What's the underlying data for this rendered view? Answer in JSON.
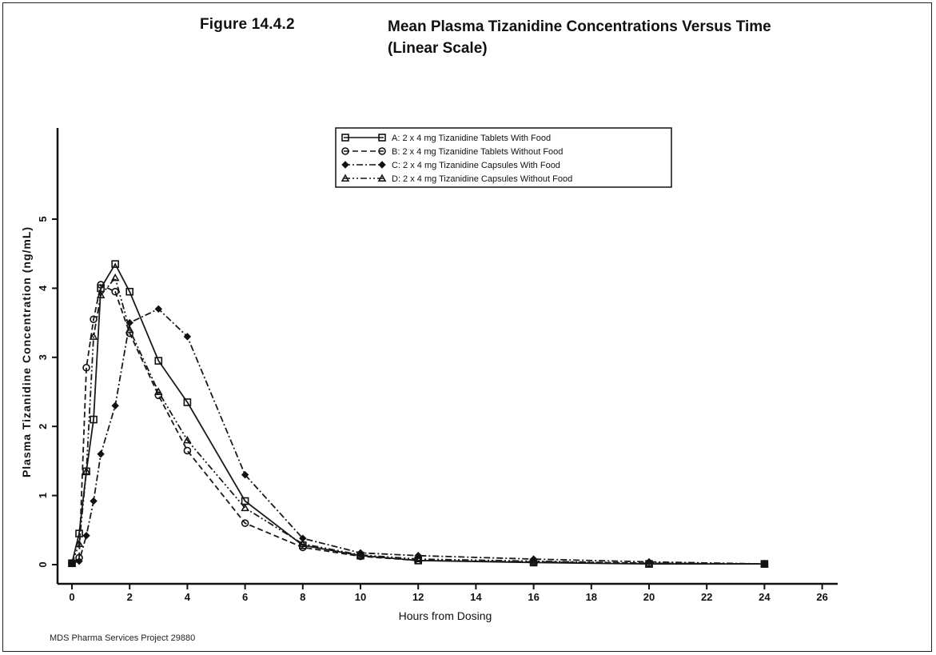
{
  "figure": {
    "number": "Figure 14.4.2",
    "title_line1": "Mean Plasma Tizanidine Concentrations Versus Time",
    "title_line2": "(Linear Scale)"
  },
  "footer": "MDS Pharma Services Project 29880",
  "chart_data": {
    "type": "line",
    "title": "Mean Plasma Tizanidine Concentrations Versus Time (Linear Scale)",
    "xlabel": "Hours from Dosing",
    "ylabel": "Plasma Tizanidine Concentration (ng/mL)",
    "xlim": [
      0,
      26
    ],
    "ylim": [
      0,
      5
    ],
    "xticks": [
      0,
      2,
      4,
      6,
      8,
      10,
      12,
      14,
      16,
      18,
      20,
      22,
      24,
      26
    ],
    "yticks": [
      0,
      1,
      2,
      3,
      4,
      5
    ],
    "x": [
      0,
      0.25,
      0.5,
      0.75,
      1,
      1.5,
      2,
      3,
      4,
      6,
      8,
      10,
      12,
      16,
      20,
      24
    ],
    "legend_position": "top",
    "series": [
      {
        "name": "A: 2 x 4 mg Tizanidine Tablets With Food",
        "marker": "square",
        "dash": "solid",
        "color": "#1a1a1a",
        "values": [
          0.02,
          0.45,
          1.35,
          2.1,
          4.0,
          4.35,
          3.95,
          2.95,
          2.35,
          0.92,
          0.28,
          0.13,
          0.06,
          0.03,
          0.01,
          0.01
        ]
      },
      {
        "name": "B: 2 x 4 mg Tizanidine Tablets Without Food",
        "marker": "circle",
        "dash": "dash",
        "color": "#1a1a1a",
        "values": [
          0.02,
          0.1,
          2.85,
          3.55,
          4.05,
          3.95,
          3.35,
          2.45,
          1.65,
          0.6,
          0.25,
          0.12,
          0.06,
          0.04,
          0.02,
          0.01
        ]
      },
      {
        "name": "C: 2 x 4 mg Tizanidine Capsules With Food",
        "marker": "diamond",
        "dash": "dashdot",
        "color": "#1a1a1a",
        "values": [
          0.02,
          0.05,
          0.42,
          0.92,
          1.6,
          2.3,
          3.5,
          3.7,
          3.3,
          1.3,
          0.38,
          0.17,
          0.13,
          0.08,
          0.04,
          0.01
        ]
      },
      {
        "name": "D: 2 x 4 mg Tizanidine Capsules Without Food",
        "marker": "triangle",
        "dash": "dashdotdot",
        "color": "#1a1a1a",
        "values": [
          0.02,
          0.3,
          1.35,
          3.3,
          3.9,
          4.15,
          3.4,
          2.5,
          1.8,
          0.82,
          0.3,
          0.14,
          0.08,
          0.05,
          0.02,
          0.01
        ]
      }
    ]
  }
}
